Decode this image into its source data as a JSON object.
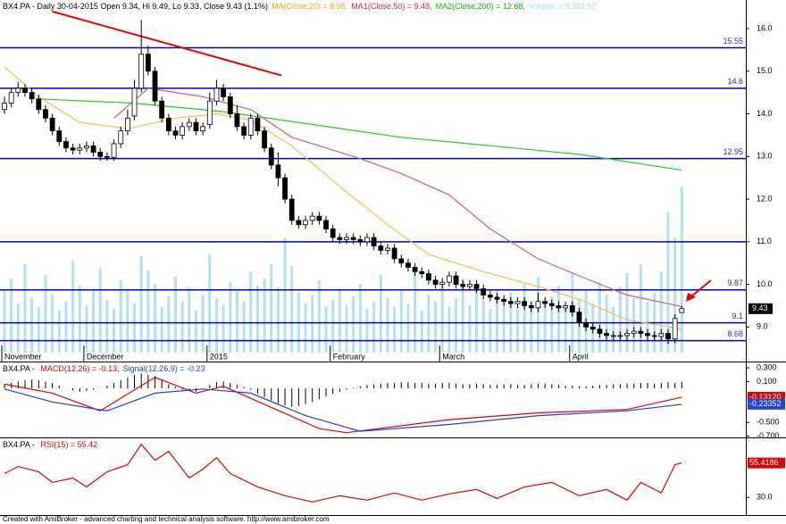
{
  "chart_data": [
    {
      "type": "candlestick",
      "header": [
        {
          "text": "BX4.PA - Daily 30-04-2015 Open 9.34, Hi 9.49, Lo 9.33, Close 9.43 (1.1%)",
          "color": "#000000"
        },
        {
          "text": "MA(Close,20) = 8.95,",
          "color": "#e8a800"
        },
        {
          "text": "MA1(Close,50) = 9.48,",
          "color": "#c03040"
        },
        {
          "text": "MA2(Close,200) = 12.68,",
          "color": "#10b010"
        },
        {
          "text": "Volume = 9,383.52",
          "color": "#a8d8f0"
        }
      ],
      "open": [
        14.1,
        14.25,
        14.5,
        14.6,
        14.5,
        14.35,
        14.1,
        13.9,
        13.6,
        13.35,
        13.2,
        13.15,
        13.2,
        13.25,
        13.1,
        13.0,
        12.98,
        13.3,
        13.6,
        13.95,
        14.6,
        15.4,
        15.0,
        14.3,
        13.9,
        13.6,
        13.5,
        13.7,
        13.8,
        13.6,
        13.75,
        14.3,
        14.6,
        14.4,
        14.0,
        13.7,
        13.5,
        13.9,
        13.6,
        13.2,
        12.8,
        12.5,
        12.0,
        11.5,
        11.4,
        11.5,
        11.6,
        11.5,
        11.3,
        11.1,
        11.05,
        11.1,
        11.05,
        11.0,
        11.1,
        10.9,
        10.8,
        10.85,
        10.6,
        10.5,
        10.4,
        10.3,
        10.25,
        10.1,
        10.0,
        10.05,
        10.2,
        10.0,
        9.95,
        10.0,
        9.9,
        9.75,
        9.7,
        9.65,
        9.6,
        9.55,
        9.6,
        9.5,
        9.45,
        9.6,
        9.55,
        9.5,
        9.45,
        9.5,
        9.35,
        9.1,
        9.0,
        8.95,
        8.85,
        8.8,
        8.8,
        8.8,
        8.85,
        8.9,
        8.85,
        8.8,
        8.78,
        8.85,
        8.72,
        9.34
      ],
      "high": [
        14.4,
        14.6,
        14.75,
        14.7,
        14.6,
        14.45,
        14.2,
        14.0,
        13.7,
        13.45,
        13.3,
        13.3,
        13.35,
        13.35,
        13.2,
        13.1,
        13.4,
        13.7,
        14.1,
        14.8,
        16.2,
        15.6,
        15.1,
        14.4,
        14.0,
        13.7,
        13.8,
        13.9,
        13.9,
        13.8,
        14.5,
        14.8,
        14.7,
        14.5,
        14.2,
        13.8,
        14.0,
        14.0,
        13.7,
        13.3,
        13.1,
        12.6,
        12.1,
        11.6,
        11.6,
        11.7,
        11.7,
        11.6,
        11.4,
        11.2,
        11.2,
        11.2,
        11.15,
        11.2,
        11.2,
        11.0,
        10.95,
        10.95,
        10.7,
        10.6,
        10.5,
        10.4,
        10.35,
        10.2,
        10.15,
        10.3,
        10.3,
        10.1,
        10.1,
        10.1,
        10.0,
        9.85,
        9.8,
        9.75,
        9.7,
        9.7,
        9.7,
        9.6,
        9.8,
        9.7,
        9.65,
        9.6,
        9.6,
        9.6,
        9.45,
        9.2,
        9.1,
        9.05,
        8.95,
        8.9,
        8.9,
        8.95,
        9.0,
        9.0,
        8.95,
        8.9,
        8.95,
        8.95,
        9.3,
        9.49
      ],
      "low": [
        14.0,
        14.15,
        14.4,
        14.4,
        14.25,
        14.0,
        13.8,
        13.5,
        13.25,
        13.1,
        13.05,
        13.05,
        13.1,
        13.0,
        12.9,
        12.9,
        12.9,
        13.2,
        13.5,
        13.85,
        14.5,
        14.9,
        14.2,
        13.8,
        13.5,
        13.4,
        13.4,
        13.6,
        13.5,
        13.5,
        13.65,
        14.2,
        14.3,
        13.9,
        13.6,
        13.4,
        13.4,
        13.5,
        13.1,
        12.7,
        12.3,
        11.9,
        11.4,
        11.3,
        11.3,
        11.4,
        11.4,
        11.2,
        11.0,
        10.95,
        10.95,
        10.95,
        10.9,
        10.9,
        10.8,
        10.7,
        10.7,
        10.5,
        10.4,
        10.3,
        10.2,
        10.15,
        10.0,
        9.9,
        9.9,
        9.95,
        9.9,
        9.85,
        9.85,
        9.8,
        9.65,
        9.6,
        9.55,
        9.5,
        9.45,
        9.45,
        9.4,
        9.35,
        9.35,
        9.45,
        9.4,
        9.35,
        9.35,
        9.25,
        9.0,
        8.9,
        8.85,
        8.75,
        8.7,
        8.7,
        8.7,
        8.7,
        8.75,
        8.75,
        8.7,
        8.68,
        8.68,
        8.6,
        8.62,
        9.33
      ],
      "close": [
        14.25,
        14.5,
        14.6,
        14.5,
        14.35,
        14.1,
        13.9,
        13.6,
        13.35,
        13.2,
        13.15,
        13.2,
        13.25,
        13.1,
        13.0,
        12.98,
        13.3,
        13.6,
        13.9,
        14.6,
        15.4,
        15.0,
        14.3,
        13.9,
        13.6,
        13.5,
        13.7,
        13.8,
        13.6,
        13.7,
        14.3,
        14.6,
        14.4,
        14.0,
        13.7,
        13.5,
        13.9,
        13.6,
        13.2,
        12.8,
        12.5,
        12.0,
        11.5,
        11.4,
        11.5,
        11.6,
        11.5,
        11.3,
        11.1,
        11.05,
        11.1,
        11.05,
        11.0,
        11.1,
        10.9,
        10.8,
        10.85,
        10.6,
        10.5,
        10.4,
        10.3,
        10.25,
        10.1,
        10.0,
        10.05,
        10.2,
        10.0,
        9.95,
        10.0,
        9.9,
        9.75,
        9.7,
        9.65,
        9.6,
        9.55,
        9.6,
        9.5,
        9.45,
        9.6,
        9.55,
        9.5,
        9.45,
        9.5,
        9.35,
        9.1,
        9.0,
        8.95,
        8.85,
        8.8,
        8.8,
        8.8,
        8.85,
        8.9,
        8.85,
        8.8,
        8.78,
        8.85,
        8.72,
        9.2,
        9.43
      ],
      "volume": [
        3500,
        4200,
        2800,
        5000,
        3100,
        2600,
        4400,
        3300,
        2400,
        2900,
        5200,
        3800,
        2700,
        3600,
        4800,
        3000,
        2500,
        4100,
        3500,
        2800,
        5500,
        4700,
        3900,
        2600,
        3200,
        4300,
        2900,
        3700,
        2400,
        3300,
        5600,
        3100,
        2700,
        4000,
        3500,
        2900,
        4600,
        3800,
        4200,
        5000,
        3700,
        6500,
        4900,
        3400,
        2800,
        3300,
        4100,
        2600,
        3000,
        3600,
        2700,
        3200,
        3900,
        2500,
        2900,
        4400,
        3100,
        2600,
        3500,
        2800,
        4700,
        2400,
        3300,
        2900,
        3800,
        2600,
        3100,
        4200,
        2700,
        3500,
        3000,
        2500,
        3600,
        2800,
        3400,
        2600,
        3900,
        2900,
        4300,
        2700,
        3200,
        3800,
        2600,
        4500,
        3000,
        3500,
        2800,
        4000,
        3300,
        2600,
        3700,
        4500,
        3100,
        5000,
        2900,
        3400,
        4600,
        8000,
        6500,
        9383.52
      ],
      "volume_color": "#b4e0f4",
      "vlim": [
        0,
        20000
      ],
      "xlabels": [
        {
          "index": 0,
          "label": "November"
        },
        {
          "index": 12,
          "label": "December"
        },
        {
          "index": 30,
          "label": "2015"
        },
        {
          "index": 48,
          "label": "February"
        },
        {
          "index": 64,
          "label": "March"
        },
        {
          "index": 83,
          "label": "April"
        }
      ],
      "ylim": [
        8.4,
        16.67
      ],
      "yticks": [
        {
          "value": 16,
          "label": "16.0"
        },
        {
          "value": 15,
          "label": "15.0"
        },
        {
          "value": 14,
          "label": "14.0"
        },
        {
          "value": 13,
          "label": "13.0"
        },
        {
          "value": 12,
          "label": "12.0"
        },
        {
          "value": 11,
          "label": "11.0"
        },
        {
          "value": 10,
          "label": "10.0"
        },
        {
          "value": 9,
          "label": "9.0"
        }
      ],
      "levels": [
        15.55,
        14.6,
        12.95,
        9.87,
        9.1,
        8.68
      ],
      "unlabeled_levels": [
        11
      ],
      "level_color": "#0000c8",
      "series": [
        {
          "color": "#f5c040",
          "x": [
            0,
            5,
            11,
            18,
            25,
            31,
            36,
            42,
            49,
            56,
            62,
            70,
            78,
            84,
            91,
            99
          ],
          "values": [
            15.1,
            14.4,
            13.8,
            13.65,
            13.9,
            14.0,
            13.85,
            13.25,
            12.3,
            11.4,
            10.7,
            10.3,
            9.95,
            9.65,
            9.17,
            8.95
          ]
        },
        {
          "color": "#d06070",
          "x": [
            16,
            21,
            29,
            36,
            42,
            52,
            58,
            65,
            71,
            78,
            84,
            91,
            99
          ],
          "values": [
            13.9,
            14.6,
            14.4,
            14.1,
            13.45,
            12.95,
            12.6,
            12.1,
            11.3,
            10.6,
            10.2,
            9.75,
            9.48
          ]
        },
        {
          "color": "#22cc22",
          "x": [
            5,
            19,
            32,
            45,
            58,
            71,
            84,
            99
          ],
          "values": [
            14.35,
            14.25,
            14.05,
            13.75,
            13.45,
            13.25,
            13.05,
            12.68
          ]
        }
      ],
      "trendline": {
        "color": "#ee0000",
        "x": [
          7,
          40.5
        ],
        "values": [
          16.4,
          14.9
        ]
      }
    },
    {
      "type": "line",
      "header": [
        {
          "text": "BX4.PA - ",
          "color": "#000000"
        },
        {
          "text": "MACD(12,26) = -0.13,",
          "color": "#e00000"
        },
        {
          "text": "Signal(12,26,9) = -0.23",
          "color": "#2040e0"
        }
      ],
      "ylim": [
        -0.72,
        0.38
      ],
      "yticks": [
        {
          "value": 0.3,
          "label": "0.300"
        },
        {
          "value": 0.1,
          "label": "0.100"
        },
        {
          "value": -0.5,
          "label": "-0.500"
        },
        {
          "value": -0.7,
          "label": "-0.700"
        }
      ],
      "histogram": [
        0.06,
        0.08,
        0.1,
        0.12,
        0.13,
        0.12,
        0.1,
        0.08,
        0.04,
        0.0,
        -0.03,
        -0.05,
        -0.04,
        -0.02,
        0.0,
        0.04,
        0.08,
        0.12,
        0.16,
        0.2,
        0.22,
        0.2,
        0.18,
        0.12,
        0.06,
        0.02,
        -0.02,
        -0.04,
        -0.05,
        0.0,
        0.05,
        0.09,
        0.1,
        0.08,
        0.05,
        0.02,
        -0.02,
        -0.08,
        -0.13,
        -0.18,
        -0.22,
        -0.25,
        -0.27,
        -0.26,
        -0.23,
        -0.2,
        -0.16,
        -0.12,
        -0.08,
        -0.05,
        -0.02,
        0.01,
        0.03,
        0.05,
        0.06,
        0.07,
        0.08,
        0.08,
        0.09,
        0.09,
        0.08,
        0.08,
        0.07,
        0.07,
        0.08,
        0.08,
        0.07,
        0.06,
        0.06,
        0.07,
        0.06,
        0.05,
        0.05,
        0.06,
        0.06,
        0.05,
        0.05,
        0.06,
        0.07,
        0.07,
        0.06,
        0.05,
        0.04,
        0.04,
        0.03,
        0.03,
        0.04,
        0.05,
        0.05,
        0.06,
        0.06,
        0.07,
        0.07,
        0.08,
        0.08,
        0.07,
        0.08,
        0.09,
        0.08,
        0.1
      ],
      "histogram_color": "#000000",
      "series": [
        {
          "color": "#e00000",
          "x": [
            0,
            7,
            14,
            22,
            28,
            32,
            46,
            50,
            65,
            78,
            91,
            99
          ],
          "values": [
            0.06,
            -0.07,
            -0.33,
            0.16,
            -0.07,
            0.03,
            -0.59,
            -0.65,
            -0.46,
            -0.36,
            -0.31,
            -0.1312
          ],
          "last_label": "-0.13120"
        },
        {
          "color": "#2040e0",
          "x": [
            0,
            7,
            15,
            22,
            29,
            36,
            44,
            52,
            65,
            78,
            91,
            99
          ],
          "values": [
            -0.01,
            -0.2,
            -0.33,
            -0.07,
            -0.01,
            -0.07,
            -0.4,
            -0.63,
            -0.53,
            -0.4,
            -0.33,
            -0.23352
          ],
          "last_label": "-0.23352"
        }
      ]
    },
    {
      "type": "line",
      "header": [
        {
          "text": "BX4.PA - ",
          "color": "#000000"
        },
        {
          "text": "RSI(15) = 55.42",
          "color": "#e00000"
        }
      ],
      "ylim": [
        17,
        73.6
      ],
      "yticks": [
        {
          "value": 30,
          "label": "30.0"
        }
      ],
      "series": [
        {
          "color": "#e00000",
          "x": [
            0,
            2,
            5,
            7,
            10,
            12,
            15,
            18,
            20,
            22,
            24,
            27,
            29,
            31,
            33,
            37,
            41,
            45,
            49,
            53,
            57,
            61,
            65,
            69,
            72,
            76,
            80,
            84,
            88,
            91,
            93,
            96,
            98,
            99
          ],
          "values": [
            47.6,
            52.8,
            48.9,
            41.1,
            44.3,
            37.8,
            48.9,
            54.1,
            69.1,
            57.4,
            63.9,
            44.3,
            50.8,
            59.3,
            47.6,
            37.8,
            31.3,
            26.7,
            31.3,
            28.0,
            33.3,
            28.0,
            32.6,
            35.9,
            29.3,
            37.8,
            41.1,
            31.3,
            35.9,
            28.0,
            41.1,
            33.3,
            54.1,
            55.4186
          ],
          "last_label": "55.4186"
        }
      ]
    }
  ],
  "footer": "Created with AmiBroker - advanced charting and technical analysis software. http://www.amibroker.com"
}
